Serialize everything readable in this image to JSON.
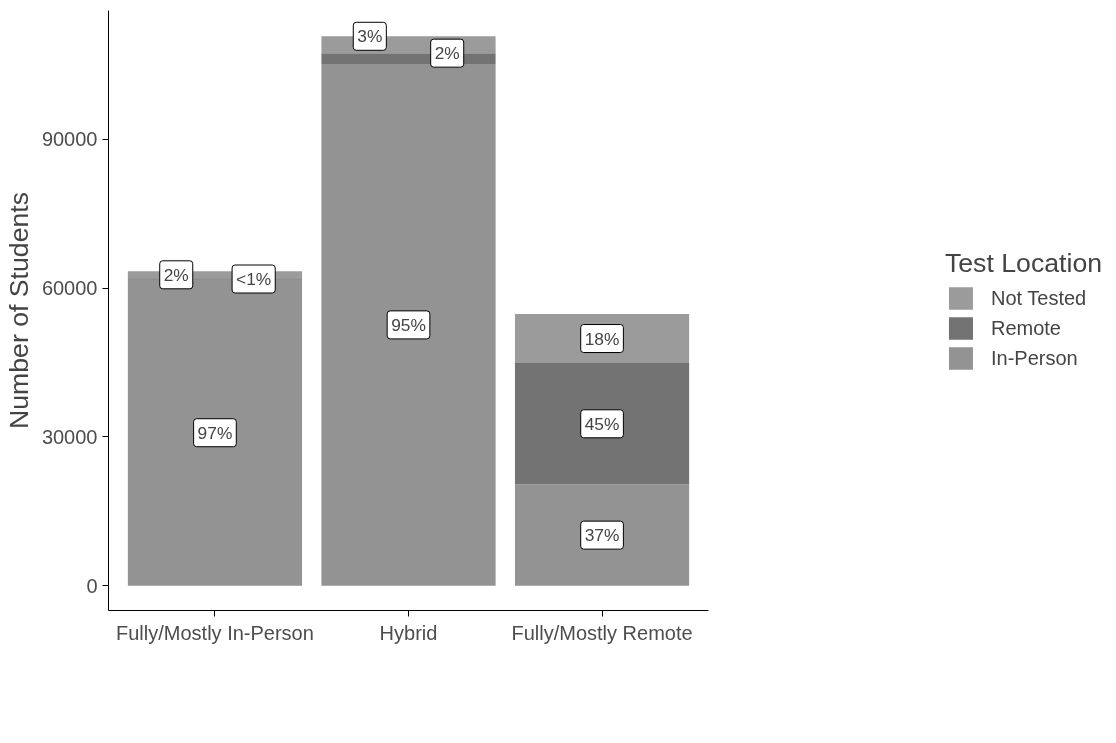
{
  "chart_data": {
    "type": "bar",
    "stacked": true,
    "ylabel": "Number of Students",
    "legend_title": "Test Location",
    "legend": "right",
    "grid": false,
    "categories": [
      "Fully/Mostly In-Person",
      "Hybrid",
      "Fully/Mostly Remote"
    ],
    "ylim": [
      -5000,
      116000
    ],
    "yticks": [
      0,
      30000,
      60000,
      90000
    ],
    "series": [
      {
        "name": "In-Person",
        "color": "#939393",
        "values": [
          61700,
          105200,
          20400
        ]
      },
      {
        "name": "Remote",
        "color": "#737373",
        "values": [
          300,
          2200,
          24500
        ]
      },
      {
        "name": "Not Tested",
        "color": "#9b9b9b",
        "values": [
          1400,
          3400,
          9900
        ]
      }
    ],
    "annotations": [
      {
        "text": "97%",
        "x": "Fully/Mostly In-Person",
        "y": 30850
      },
      {
        "text": "<1%",
        "x": "Fully/Mostly In-Person",
        "y": 61850
      },
      {
        "text": "2%",
        "x": "Fully/Mostly In-Person",
        "y": 62700
      },
      {
        "text": "95%",
        "x": "Hybrid",
        "y": 52600
      },
      {
        "text": "2%",
        "x": "Hybrid",
        "y": 107400
      },
      {
        "text": "3%",
        "x": "Hybrid",
        "y": 110800
      },
      {
        "text": "37%",
        "x": "Fully/Mostly Remote",
        "y": 10200
      },
      {
        "text": "45%",
        "x": "Fully/Mostly Remote",
        "y": 32650
      },
      {
        "text": "18%",
        "x": "Fully/Mostly Remote",
        "y": 49850
      }
    ]
  }
}
